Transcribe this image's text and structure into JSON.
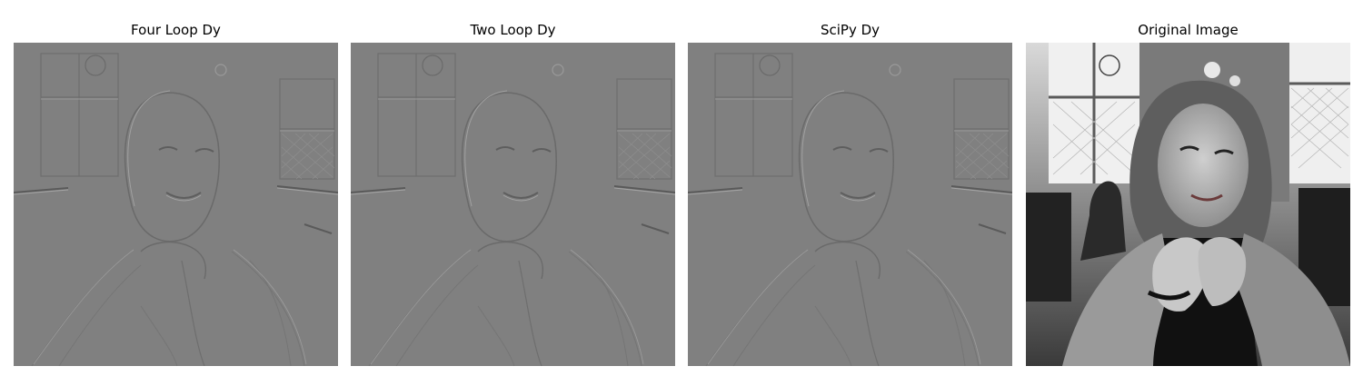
{
  "figure": {
    "panels": [
      {
        "id": "four-loop",
        "title": "Four Loop Dy",
        "kind": "derivative"
      },
      {
        "id": "two-loop",
        "title": "Two Loop Dy",
        "kind": "derivative"
      },
      {
        "id": "scipy",
        "title": "SciPy Dy",
        "kind": "derivative"
      },
      {
        "id": "original",
        "title": "Original Image",
        "kind": "grayscale-photo"
      }
    ]
  },
  "colors": {
    "derivative_background": "#808080",
    "photo_dark": "#1a1a1a",
    "photo_light": "#f2f2f2"
  }
}
